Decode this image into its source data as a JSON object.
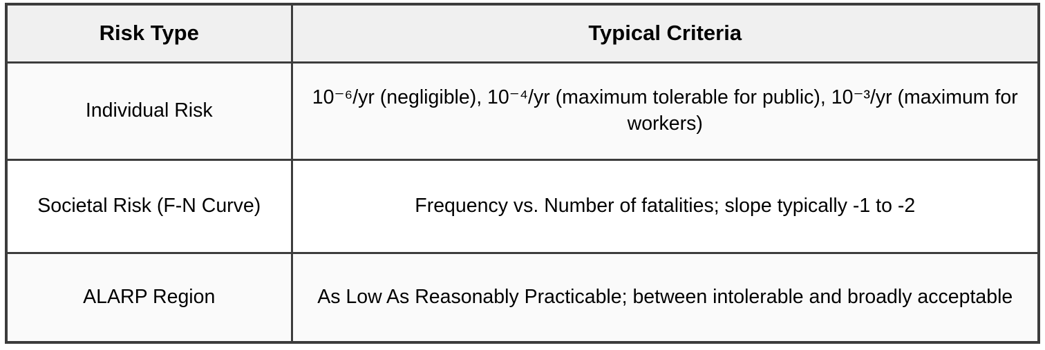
{
  "chart_data": {
    "type": "table",
    "title": "",
    "columns": [
      "Risk Type",
      "Typical Criteria"
    ],
    "rows": [
      {
        "risk_type": "Individual Risk",
        "criteria": "10⁻⁶/yr (negligible), 10⁻⁴/yr (maximum tolerable for public), 10⁻³/yr (maximum for workers)"
      },
      {
        "risk_type": "Societal Risk (F-N Curve)",
        "criteria": "Frequency vs. Number of fatalities; slope typically -1 to -2"
      },
      {
        "risk_type": "ALARP Region",
        "criteria": "As Low As Reasonably Practicable; between intolerable and broadly acceptable"
      }
    ],
    "layout": {
      "header_background": "#f0f0f0",
      "row_stripe_background": "#fafafa",
      "row_plain_background": "#ffffff",
      "border_color": "#3c3c3c",
      "text_color": "#000000",
      "alignment": "center"
    }
  }
}
